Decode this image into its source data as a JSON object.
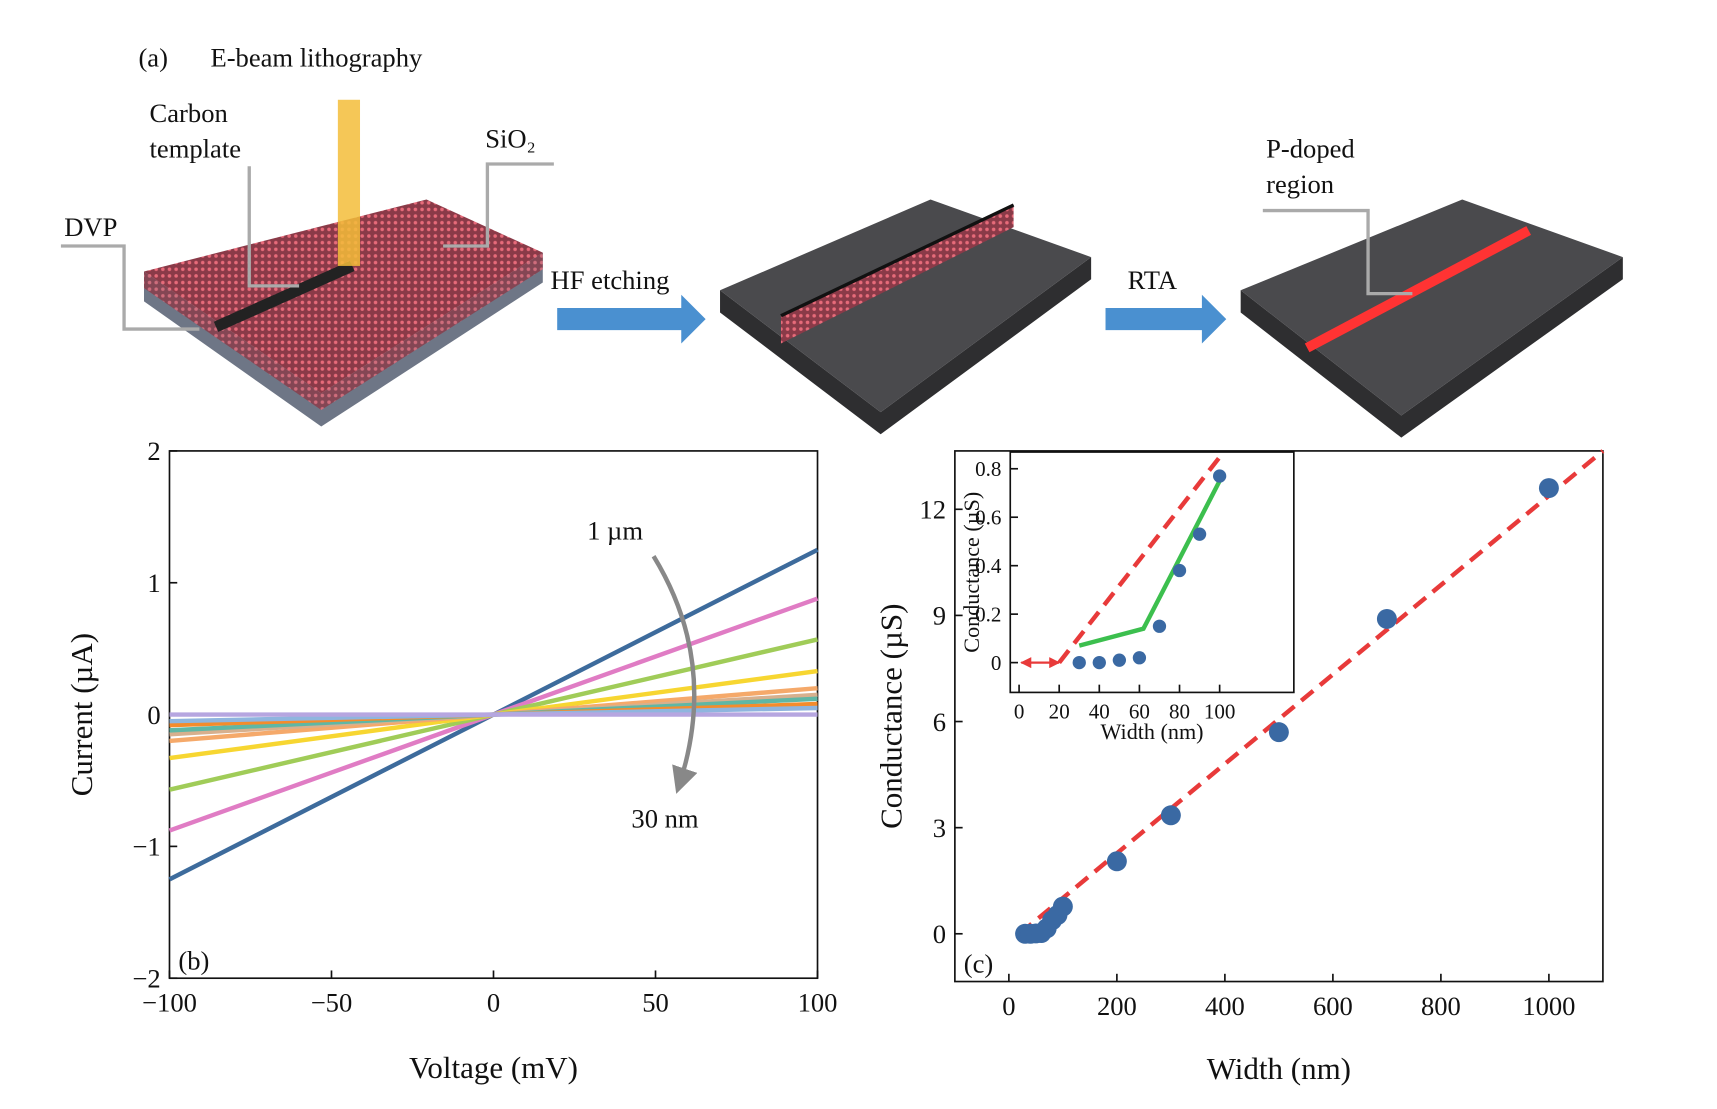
{
  "diagram": {
    "panel_label": "(a)",
    "title": "E-beam lithography",
    "carbon_template": [
      "Carbon",
      "template"
    ],
    "sio2": "SiO₂",
    "dvp": "DVP",
    "step1": "HF etching",
    "step2": "RTA",
    "p_doped": [
      "P-doped",
      "region"
    ]
  },
  "chart_data": [
    {
      "type": "line",
      "panel_label": "(b)",
      "xlabel": "Voltage (mV)",
      "ylabel": "Current (µA)",
      "annotations": [
        "1 µm",
        "30 nm"
      ],
      "x": [
        -100,
        100
      ],
      "series": [
        {
          "color": "#3d6b9c",
          "values": [
            -1.25,
            1.25
          ]
        },
        {
          "color": "#e07cc4",
          "values": [
            -0.88,
            0.88
          ]
        },
        {
          "color": "#a0cc58",
          "values": [
            -0.57,
            0.57
          ]
        },
        {
          "color": "#f7d631",
          "values": [
            -0.33,
            0.33
          ]
        },
        {
          "color": "#f5a96a",
          "values": [
            -0.2,
            0.2
          ]
        },
        {
          "color": "#d7b08e",
          "values": [
            -0.15,
            0.15
          ]
        },
        {
          "color": "#5fb7a5",
          "values": [
            -0.12,
            0.12
          ]
        },
        {
          "color": "#f48c2c",
          "values": [
            -0.08,
            0.08
          ]
        },
        {
          "color": "#8fb5de",
          "values": [
            -0.05,
            0.05
          ]
        },
        {
          "color": "#b6a6e0",
          "values": [
            0,
            0
          ]
        }
      ],
      "xlim": [
        -100,
        100
      ],
      "ylim": [
        -2,
        2
      ],
      "xticks": [
        {
          "value": -100,
          "label": "−100"
        },
        {
          "value": -50,
          "label": "−50"
        },
        0,
        50,
        100
      ],
      "yticks": [
        {
          "value": -2,
          "label": "−2"
        },
        {
          "value": -1,
          "label": "−1"
        },
        0,
        1,
        2
      ]
    },
    {
      "type": "scatter",
      "panel_label": "(c)",
      "xlabel": "Width (nm)",
      "ylabel": "Conductance (µS)",
      "color": "#3a69a3",
      "x": [
        30,
        40,
        50,
        60,
        70,
        80,
        90,
        100,
        200,
        300,
        500,
        700,
        1000
      ],
      "values": [
        0,
        0,
        0.01,
        0.02,
        0.15,
        0.38,
        0.53,
        0.77,
        2.05,
        3.35,
        5.7,
        8.9,
        12.6
      ],
      "lines": [
        {
          "color": "#e83a3a",
          "dash": true,
          "x": [
            20,
            1100
          ],
          "values": [
            0,
            13.65
          ]
        }
      ],
      "xlim": [
        -100,
        1100
      ],
      "ylim": [
        -1.35,
        13.65
      ],
      "xticks": [
        0,
        200,
        400,
        600,
        800,
        1000
      ],
      "yticks": [
        0,
        3,
        6,
        9,
        12
      ]
    },
    {
      "type": "scatter",
      "xlabel": "Width (nm)",
      "ylabel": "Conductance (µS)",
      "color": "#3a69a3",
      "x": [
        30,
        40,
        50,
        60,
        70,
        80,
        90,
        100
      ],
      "values": [
        0,
        0,
        0.01,
        0.02,
        0.15,
        0.38,
        0.53,
        0.77
      ],
      "lines": [
        {
          "color": "#e83a3a",
          "dash": true,
          "x": [
            20,
            102
          ],
          "values": [
            0,
            0.869
          ]
        },
        {
          "color": "#3cbf4e",
          "dash": false,
          "x": [
            30,
            62,
            72,
            100
          ],
          "values": [
            0.07,
            0.14,
            0.3,
            0.75
          ]
        }
      ],
      "arrow": {
        "color": "#e83a3a",
        "x": [
          0,
          20
        ],
        "value": 0
      },
      "xlim": [
        -4.4,
        137
      ],
      "ylim": [
        -0.123,
        0.869
      ],
      "xticks": [
        0,
        20,
        40,
        60,
        80,
        100
      ],
      "yticks": [
        0,
        0.2,
        0.4,
        0.6,
        0.8
      ]
    }
  ]
}
